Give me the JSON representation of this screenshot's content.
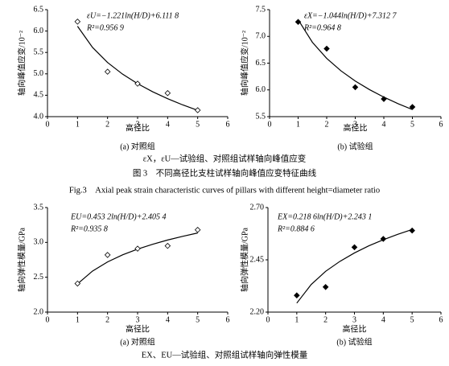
{
  "chart_data": [
    {
      "type": "scatter",
      "subtitle": "(a) 对照组",
      "xlabel": "高径比",
      "ylabel": "轴向峰值应变/10⁻²",
      "equation": "εU=−1.221ln(H/D)+6.111 8",
      "r2": "R²=0.956 9",
      "marker": "open",
      "color": "#000000",
      "x": [
        1,
        2,
        3,
        4,
        5
      ],
      "values": [
        6.22,
        5.05,
        4.77,
        4.55,
        4.15
      ],
      "fit": {
        "x": [
          1,
          1.5,
          2,
          2.5,
          3,
          3.5,
          4,
          4.5,
          5
        ],
        "values": [
          6.112,
          5.617,
          5.265,
          4.993,
          4.77,
          4.582,
          4.419,
          4.275,
          4.147
        ]
      },
      "xlim": [
        0,
        6
      ],
      "xticks": [
        0,
        1,
        2,
        3,
        4,
        5,
        6
      ],
      "ylim": [
        4,
        6.5
      ],
      "yticks": [
        {
          "value": 4,
          "label": "4.0"
        },
        4.5,
        {
          "value": 5,
          "label": "5.0"
        },
        5.5,
        {
          "value": 6,
          "label": "6.0"
        },
        6.5
      ]
    },
    {
      "type": "scatter",
      "subtitle": "(b) 试验组",
      "xlabel": "高径比",
      "ylabel": "轴向峰值应变/10⁻²",
      "equation": "εX=−1.044ln(H/D)+7.312 7",
      "r2": "R²=0.964 8",
      "marker": "filled",
      "color": "#000000",
      "x": [
        1,
        2,
        3,
        4,
        5
      ],
      "values": [
        7.27,
        6.77,
        6.05,
        5.83,
        5.68
      ],
      "fit": {
        "x": [
          1,
          1.5,
          2,
          2.5,
          3,
          3.5,
          4,
          4.5,
          5
        ],
        "values": [
          7.313,
          6.889,
          6.589,
          6.356,
          6.166,
          6.005,
          5.865,
          5.742,
          5.632
        ]
      },
      "xlim": [
        0,
        6
      ],
      "xticks": [
        0,
        1,
        2,
        3,
        4,
        5,
        6
      ],
      "ylim": [
        5.5,
        7.5
      ],
      "yticks": [
        5.5,
        {
          "value": 6,
          "label": "6.0"
        },
        6.5,
        {
          "value": 7,
          "label": "7.0"
        },
        7.5
      ]
    },
    {
      "type": "scatter",
      "subtitle": "(a) 对照组",
      "xlabel": "高径比",
      "ylabel": "轴向弹性模量/GPa",
      "equation": "EU=0.453 2ln(H/D)+2.405 4",
      "r2": "R²=0.935 8",
      "marker": "open",
      "color": "#000000",
      "x": [
        1,
        2,
        3,
        4,
        5
      ],
      "values": [
        2.41,
        2.82,
        2.91,
        2.95,
        3.18
      ],
      "fit": {
        "x": [
          1,
          1.5,
          2,
          2.5,
          3,
          3.5,
          4,
          4.5,
          5
        ],
        "values": [
          2.405,
          2.589,
          2.72,
          2.821,
          2.903,
          2.973,
          3.034,
          3.087,
          3.135
        ]
      },
      "xlim": [
        0,
        6
      ],
      "xticks": [
        0,
        1,
        2,
        3,
        4,
        5,
        6
      ],
      "ylim": [
        2,
        3.5
      ],
      "yticks": [
        {
          "value": 2,
          "label": "2.0"
        },
        2.5,
        {
          "value": 3,
          "label": "3.0"
        },
        3.5
      ]
    },
    {
      "type": "scatter",
      "subtitle": "(b) 试验组",
      "xlabel": "高径比",
      "ylabel": "轴向弹性模量/GPa",
      "equation": "EX=0.218 6ln(H/D)+2.243 1",
      "r2": "R²=0.884 6",
      "marker": "filled",
      "color": "#000000",
      "x": [
        1,
        2,
        3,
        4,
        5
      ],
      "values": [
        2.28,
        2.32,
        2.51,
        2.55,
        2.59
      ],
      "fit": {
        "x": [
          1,
          1.5,
          2,
          2.5,
          3,
          3.5,
          4,
          4.5,
          5
        ],
        "values": [
          2.243,
          2.332,
          2.395,
          2.443,
          2.483,
          2.517,
          2.546,
          2.572,
          2.595
        ]
      },
      "xlim": [
        0,
        6
      ],
      "xticks": [
        0,
        1,
        2,
        3,
        4,
        5,
        6
      ],
      "ylim": [
        2.2,
        2.7
      ],
      "yticks": [
        {
          "value": 2.2,
          "label": "2.20"
        },
        2.45,
        {
          "value": 2.7,
          "label": "2.70"
        }
      ]
    }
  ],
  "captions": {
    "strain_note": "εX，εU—试验组、对照组试样轴向峰值应变",
    "fig3_cn": "图 3　不同高径比支柱试样轴向峰值应变特征曲线",
    "fig3_en": "Fig.3　Axial peak strain characteristic curves of pillars with different height=diameter ratio",
    "modulus_note": "EX、EU—试验组、对照组试样轴向弹性模量"
  }
}
